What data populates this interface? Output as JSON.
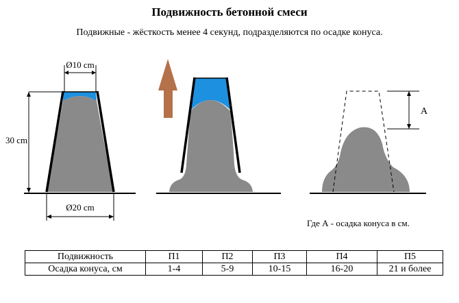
{
  "title": "Подвижность бетонной смеси",
  "subtitle": "Подвижные - жёсткость менее 4 секунд, подразделяются по осадке конуса.",
  "diagram": {
    "top_diameter_label": "Ø10 cm",
    "height_label": "30 cm",
    "bottom_diameter_label": "Ø20 cm",
    "slump_label": "A",
    "caption": "Где А - осадка конуса в см.",
    "colors": {
      "concrete": "#8a8a8a",
      "water": "#1e90e0",
      "arrow": "#b4714a",
      "cone_wall": "#000000"
    }
  },
  "table": {
    "row_labels": [
      "Подвижность",
      "Осадка конуса, см"
    ],
    "classes": [
      "П1",
      "П2",
      "П3",
      "П4",
      "П5"
    ],
    "slump_values": [
      "1-4",
      "5-9",
      "10-15",
      "16-20",
      "21 и более"
    ]
  }
}
